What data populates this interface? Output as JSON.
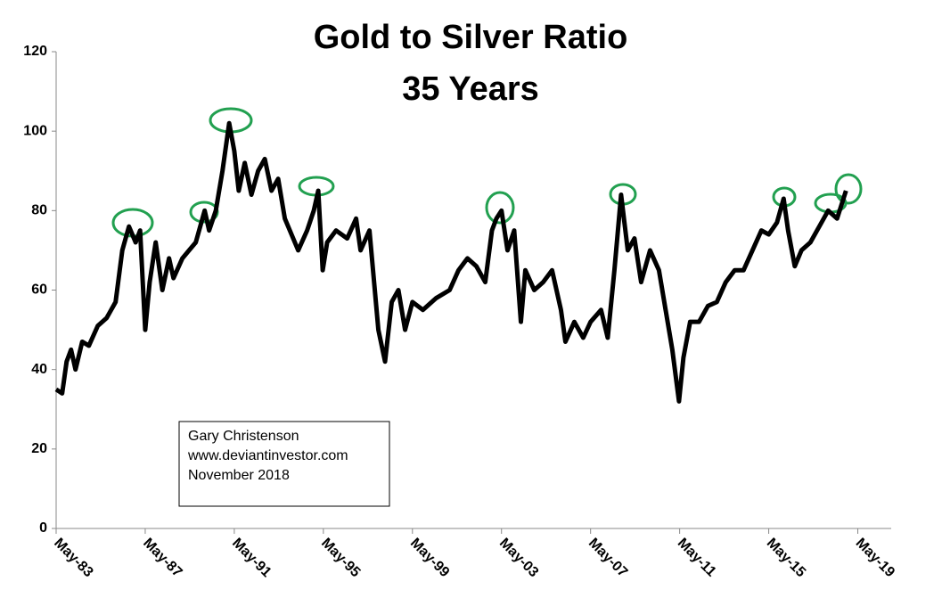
{
  "chart_data": {
    "type": "line",
    "title": "Gold to Silver Ratio",
    "subtitle": "35 Years",
    "color": "#000000",
    "annotations": [
      "Gary Christenson",
      "www.deviantinvestor.com",
      "November 2018"
    ],
    "x": [
      1983.33,
      1983.6,
      1983.8,
      1984.0,
      1984.2,
      1984.5,
      1984.8,
      1985.2,
      1985.6,
      1986.0,
      1986.3,
      1986.6,
      1986.9,
      1987.1,
      1987.33,
      1987.53,
      1987.8,
      1988.1,
      1988.4,
      1988.6,
      1989.0,
      1989.3,
      1989.6,
      1990.0,
      1990.2,
      1990.5,
      1990.8,
      1991.1,
      1991.33,
      1991.53,
      1991.8,
      1992.1,
      1992.4,
      1992.7,
      1993.0,
      1993.3,
      1993.6,
      1993.9,
      1994.2,
      1994.6,
      1994.9,
      1995.1,
      1995.3,
      1995.5,
      1995.9,
      1996.4,
      1996.8,
      1997.0,
      1997.4,
      1997.8,
      1998.1,
      1998.4,
      1998.7,
      1999.0,
      1999.33,
      1999.8,
      2000.4,
      2001.0,
      2001.4,
      2001.8,
      2002.2,
      2002.6,
      2002.9,
      2003.1,
      2003.33,
      2003.6,
      2003.9,
      2004.2,
      2004.4,
      2004.8,
      2005.2,
      2005.6,
      2006.0,
      2006.2,
      2006.6,
      2007.0,
      2007.33,
      2007.8,
      2008.1,
      2008.4,
      2008.7,
      2009.0,
      2009.3,
      2009.6,
      2010.0,
      2010.4,
      2010.7,
      2011.0,
      2011.3,
      2011.5,
      2011.8,
      2012.2,
      2012.6,
      2013.0,
      2013.4,
      2013.8,
      2014.2,
      2014.6,
      2015.0,
      2015.33,
      2015.7,
      2016.0,
      2016.2,
      2016.5,
      2016.8,
      2017.2,
      2017.6,
      2018.0,
      2018.4,
      2018.8
    ],
    "series": [
      {
        "name": "Gold to Silver Ratio",
        "color": "#000000",
        "values": [
          35,
          34,
          42,
          45,
          40,
          47,
          46,
          51,
          53,
          57,
          70,
          76,
          72,
          75,
          50,
          62,
          72,
          60,
          68,
          63,
          68,
          70,
          72,
          80,
          75,
          80,
          90,
          102,
          95,
          85,
          92,
          84,
          90,
          93,
          85,
          88,
          78,
          74,
          70,
          75,
          80,
          85,
          65,
          72,
          75,
          73,
          78,
          70,
          75,
          50,
          42,
          57,
          60,
          50,
          57,
          55,
          58,
          60,
          65,
          68,
          66,
          62,
          75,
          78,
          80,
          70,
          75,
          52,
          65,
          60,
          62,
          65,
          55,
          47,
          52,
          48,
          52,
          55,
          48,
          65,
          84,
          70,
          73,
          62,
          70,
          65,
          55,
          45,
          32,
          43,
          52,
          52,
          56,
          57,
          62,
          65,
          65,
          70,
          75,
          74,
          77,
          83,
          75,
          66,
          70,
          72,
          76,
          80,
          78,
          85
        ]
      }
    ],
    "xlim": [
      1983.33,
      2020.83
    ],
    "xticks": [
      {
        "value": 1983.33,
        "label": "May-83"
      },
      {
        "value": 1987.33,
        "label": "May-87"
      },
      {
        "value": 1991.33,
        "label": "May-91"
      },
      {
        "value": 1995.33,
        "label": "May-95"
      },
      {
        "value": 1999.33,
        "label": "May-99"
      },
      {
        "value": 2003.33,
        "label": "May-03"
      },
      {
        "value": 2007.33,
        "label": "May-07"
      },
      {
        "value": 2011.33,
        "label": "May-11"
      },
      {
        "value": 2015.33,
        "label": "May-15"
      },
      {
        "value": 2019.33,
        "label": "May-19"
      }
    ],
    "ylim": [
      0,
      120
    ],
    "yticks": [
      0,
      20,
      40,
      60,
      80,
      100,
      120
    ],
    "grid": false
  }
}
